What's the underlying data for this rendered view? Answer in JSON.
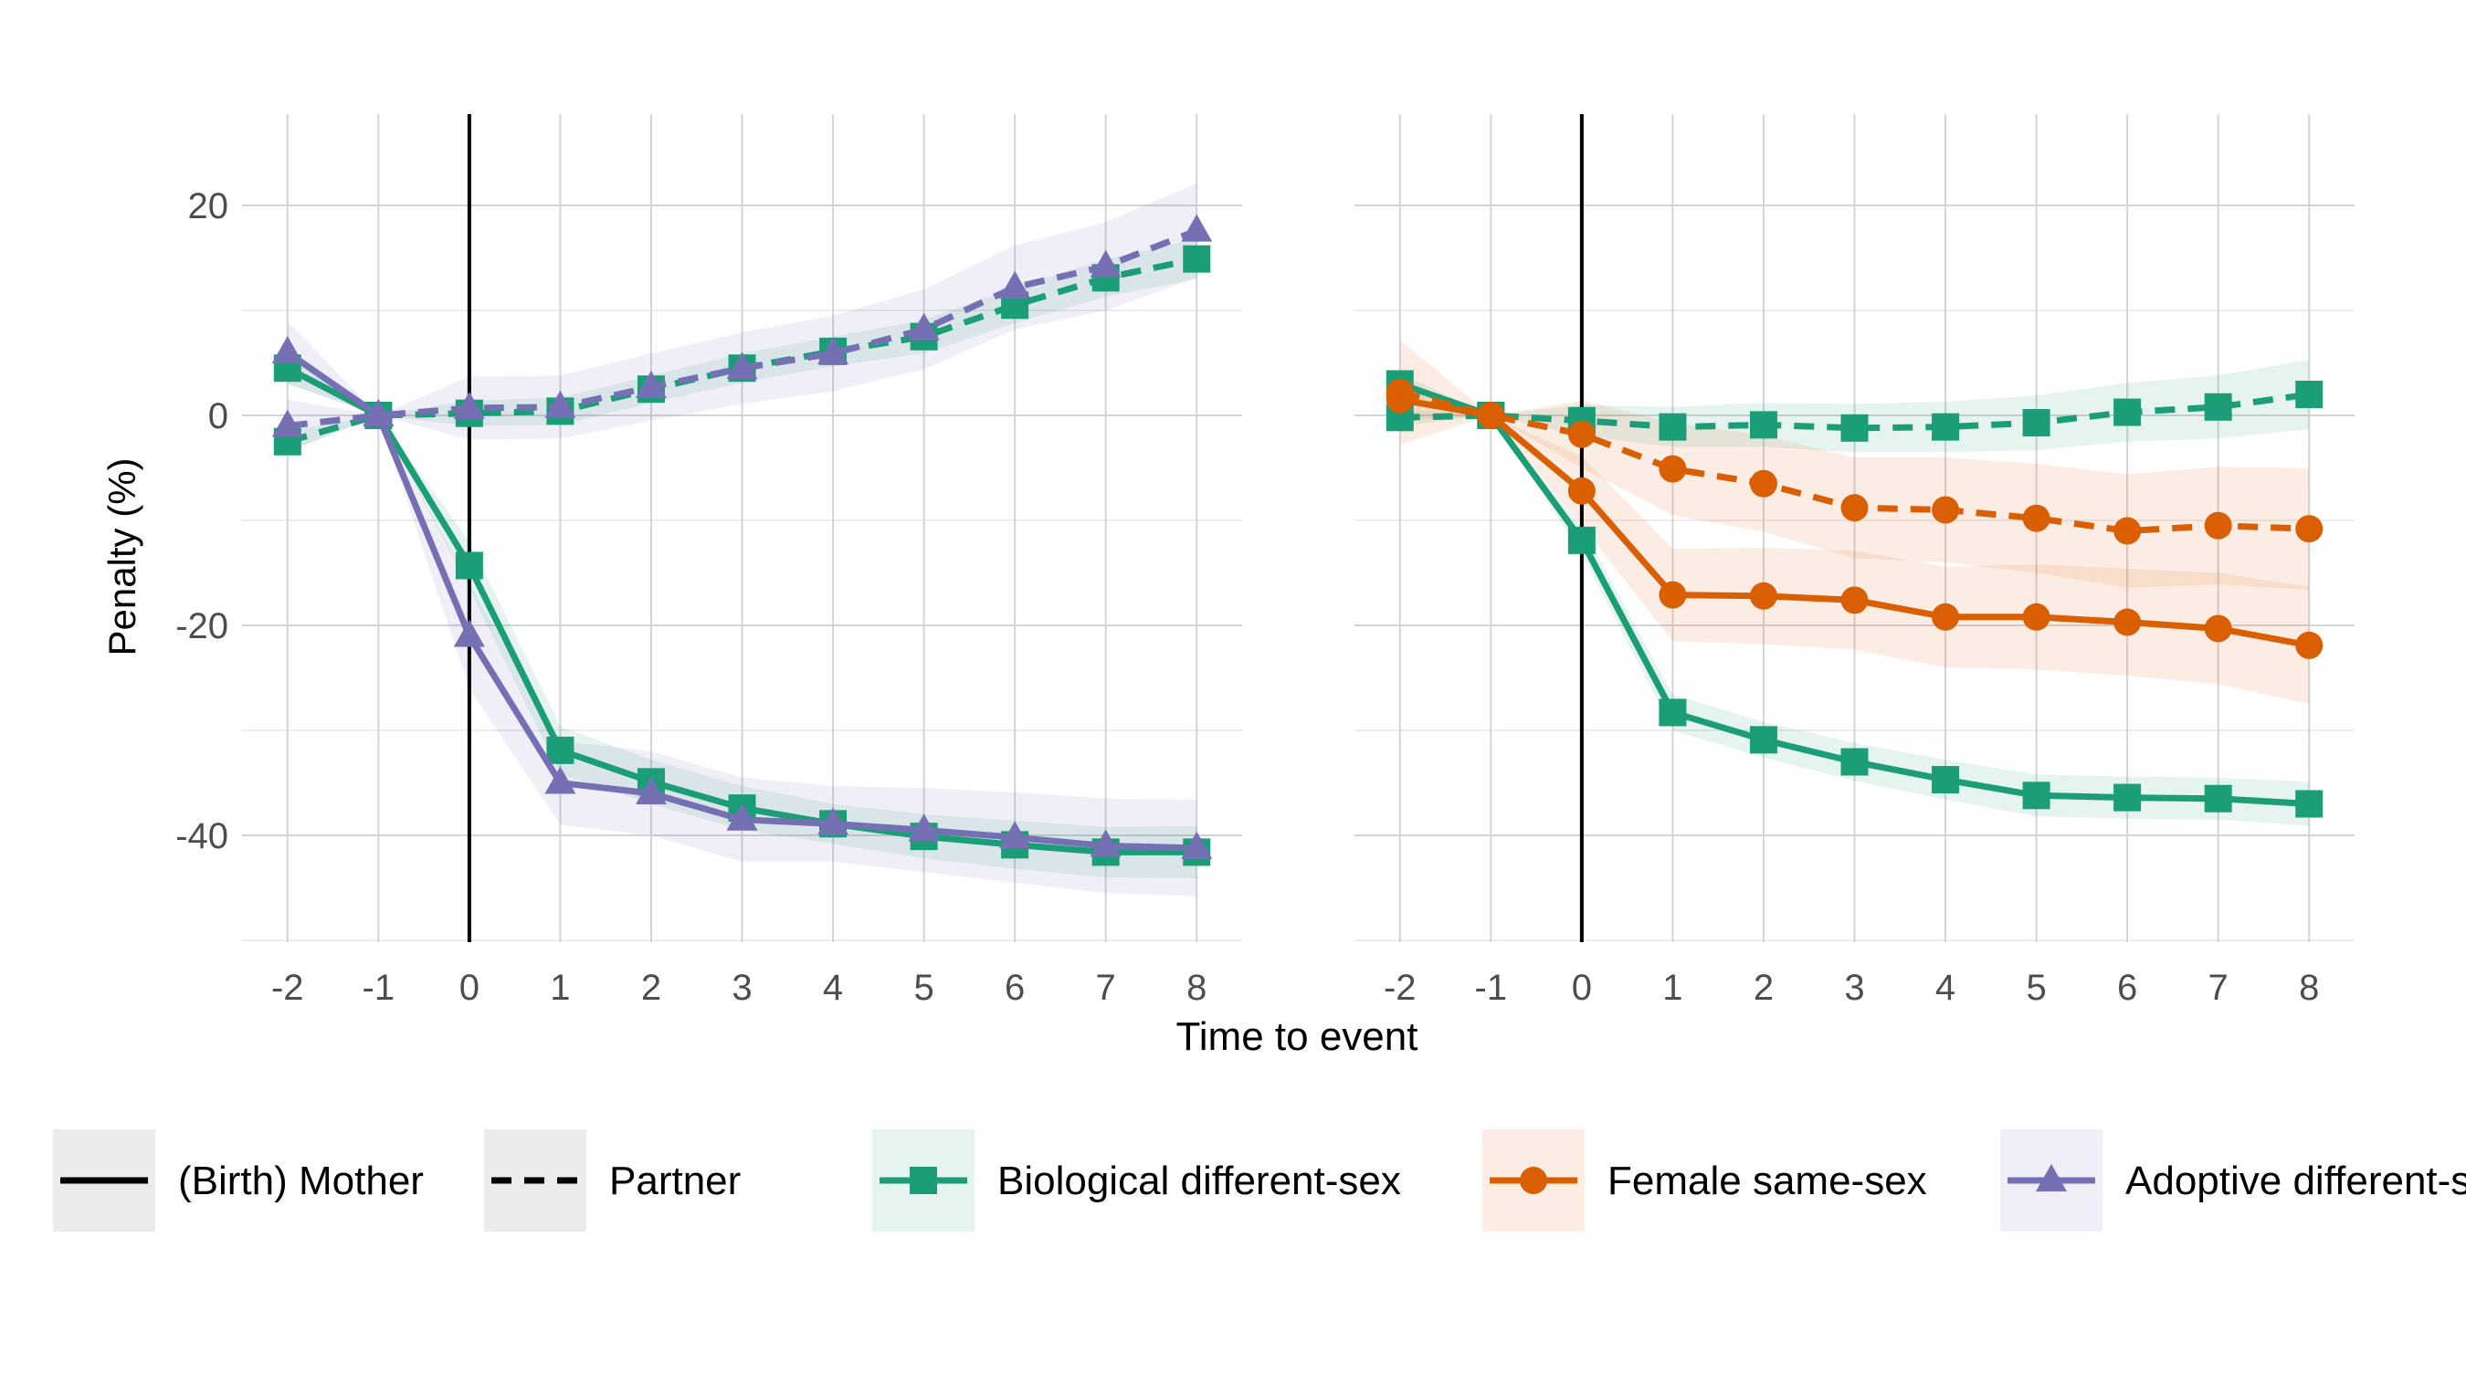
{
  "chart_data": {
    "type": "line",
    "xlabel": "Time to event",
    "ylabel": "Penalty (%)",
    "x": [
      -2,
      -1,
      0,
      1,
      2,
      3,
      4,
      5,
      6,
      7,
      8
    ],
    "xticks": [
      "-2",
      "-1",
      "0",
      "1",
      "2",
      "3",
      "4",
      "5",
      "6",
      "7",
      "8"
    ],
    "yticks": [
      "20",
      "0",
      "-20",
      "-40"
    ],
    "ylim": [
      -50,
      28
    ],
    "xlim": [
      -2.5,
      8.5
    ],
    "event_line_x": 0,
    "grid": true,
    "legend_position": "bottom",
    "legend": {
      "linetypes": [
        {
          "label": "(Birth) Mother",
          "dash": "solid"
        },
        {
          "label": "Partner",
          "dash": "dashed"
        }
      ],
      "groups": [
        {
          "label": "Biological different-sex",
          "color": "#1b9e77",
          "marker": "square"
        },
        {
          "label": "Female same-sex",
          "color": "#d95f02",
          "marker": "circle"
        },
        {
          "label": "Adoptive different-sex",
          "color": "#7570b3",
          "marker": "triangle"
        }
      ]
    },
    "panels": [
      {
        "series": [
          {
            "group": "Biological different-sex",
            "role": "(Birth) Mother",
            "color": "#1b9e77",
            "marker": "square",
            "dash": "solid",
            "values": [
              4.5,
              0,
              -14.3,
              -31.9,
              -34.9,
              -37.4,
              -38.9,
              -40.1,
              -40.9,
              -41.6,
              -41.6
            ],
            "ci": [
              [
                3,
                6
              ],
              [
                0,
                0
              ],
              [
                -16.5,
                -12
              ],
              [
                -34.2,
                -29.6
              ],
              [
                -37,
                -32.8
              ],
              [
                -39.5,
                -35.3
              ],
              [
                -40.8,
                -37
              ],
              [
                -42.2,
                -38
              ],
              [
                -43.2,
                -38.6
              ],
              [
                -44,
                -39.2
              ],
              [
                -44.1,
                -39.1
              ]
            ]
          },
          {
            "group": "Biological different-sex",
            "role": "Partner",
            "color": "#1b9e77",
            "marker": "square",
            "dash": "dashed",
            "values": [
              -2.5,
              0,
              0.2,
              0.4,
              2.5,
              4.5,
              6.1,
              7.5,
              10.5,
              13.1,
              14.9
            ],
            "ci": [
              [
                -3.5,
                -1.5
              ],
              [
                0,
                0
              ],
              [
                -1,
                1.4
              ],
              [
                -0.9,
                1.7
              ],
              [
                1.2,
                3.8
              ],
              [
                3.1,
                5.9
              ],
              [
                4.7,
                7.5
              ],
              [
                5.9,
                9.1
              ],
              [
                8.8,
                12.2
              ],
              [
                11.3,
                14.9
              ],
              [
                13,
                16.8
              ]
            ]
          },
          {
            "group": "Adoptive different-sex",
            "role": "(Birth) Mother",
            "color": "#7570b3",
            "marker": "triangle",
            "dash": "solid",
            "values": [
              6,
              0,
              -21,
              -35,
              -36,
              -38.5,
              -38.9,
              -39.5,
              -40.2,
              -41,
              -41.2
            ],
            "ci": [
              [
                3,
                9
              ],
              [
                0,
                0
              ],
              [
                -26,
                -16
              ],
              [
                -39,
                -31
              ],
              [
                -40,
                -32
              ],
              [
                -42.5,
                -34.5
              ],
              [
                -42.5,
                -35.3
              ],
              [
                -43.5,
                -35.5
              ],
              [
                -44.5,
                -35.9
              ],
              [
                -45.5,
                -36.5
              ],
              [
                -45.8,
                -36.6
              ]
            ]
          },
          {
            "group": "Adoptive different-sex",
            "role": "Partner",
            "color": "#7570b3",
            "marker": "triangle",
            "dash": "dashed",
            "values": [
              -1,
              0,
              0.7,
              0.8,
              2.7,
              4.5,
              5.9,
              8.2,
              12.2,
              14.2,
              17.6
            ],
            "ci": [
              [
                -3.5,
                1.5
              ],
              [
                0,
                0
              ],
              [
                -2.3,
                3.7
              ],
              [
                -2.2,
                3.8
              ],
              [
                -0.5,
                5.9
              ],
              [
                1.1,
                7.9
              ],
              [
                2.3,
                9.5
              ],
              [
                4.4,
                12
              ],
              [
                8.2,
                16.2
              ],
              [
                10,
                18.4
              ],
              [
                13.1,
                22.1
              ]
            ]
          }
        ]
      },
      {
        "series": [
          {
            "group": "Biological different-sex",
            "role": "(Birth) Mother",
            "color": "#1b9e77",
            "marker": "square",
            "dash": "solid",
            "values": [
              3,
              0,
              -11.9,
              -28.3,
              -30.9,
              -33,
              -34.7,
              -36.2,
              -36.4,
              -36.5,
              -37
            ],
            "ci": [
              [
                2,
                4
              ],
              [
                0,
                0
              ],
              [
                -13.2,
                -10.6
              ],
              [
                -30,
                -26.6
              ],
              [
                -32.6,
                -29.2
              ],
              [
                -34.8,
                -31.2
              ],
              [
                -36.6,
                -32.8
              ],
              [
                -38.2,
                -34.2
              ],
              [
                -38.4,
                -34.4
              ],
              [
                -38.5,
                -34.5
              ],
              [
                -39.1,
                -34.9
              ]
            ]
          },
          {
            "group": "Biological different-sex",
            "role": "Partner",
            "color": "#1b9e77",
            "marker": "square",
            "dash": "dashed",
            "values": [
              -0.2,
              0,
              -0.5,
              -1.1,
              -0.9,
              -1.2,
              -1.1,
              -0.7,
              0.3,
              0.8,
              2
            ],
            "ci": [
              [
                -1,
                0.6
              ],
              [
                0,
                0
              ],
              [
                -2,
                1
              ],
              [
                -3,
                0.8
              ],
              [
                -3,
                1.2
              ],
              [
                -3.5,
                1.1
              ],
              [
                -3.5,
                1.3
              ],
              [
                -3.3,
                1.9
              ],
              [
                -2.5,
                3.1
              ],
              [
                -2.2,
                3.8
              ],
              [
                -1.3,
                5.3
              ]
            ]
          },
          {
            "group": "Female same-sex",
            "role": "(Birth) Mother",
            "color": "#d95f02",
            "marker": "circle",
            "dash": "solid",
            "values": [
              1.5,
              0,
              -7.2,
              -17.1,
              -17.2,
              -17.6,
              -19.2,
              -19.2,
              -19.7,
              -20.3,
              -21.9
            ],
            "ci": [
              [
                -0.5,
                3.5
              ],
              [
                0,
                0
              ],
              [
                -10.5,
                -3.9
              ],
              [
                -21.5,
                -12.7
              ],
              [
                -21.8,
                -12.6
              ],
              [
                -22.3,
                -12.9
              ],
              [
                -24,
                -14.4
              ],
              [
                -24.2,
                -14.2
              ],
              [
                -24.8,
                -14.6
              ],
              [
                -25.6,
                -15
              ],
              [
                -27.5,
                -16.3
              ]
            ]
          },
          {
            "group": "Female same-sex",
            "role": "Partner",
            "color": "#d95f02",
            "marker": "circle",
            "dash": "dashed",
            "values": [
              2.2,
              0,
              -1.8,
              -5.1,
              -6.5,
              -8.8,
              -9,
              -9.8,
              -11,
              -10.5,
              -10.8
            ],
            "ci": [
              [
                -2.8,
                7.2
              ],
              [
                0,
                0
              ],
              [
                -5,
                1.4
              ],
              [
                -9.5,
                -0.7
              ],
              [
                -11.1,
                -1.9
              ],
              [
                -13.6,
                -4
              ],
              [
                -14,
                -4
              ],
              [
                -15,
                -4.6
              ],
              [
                -16.4,
                -5.6
              ],
              [
                -16.1,
                -4.9
              ],
              [
                -16.6,
                -5
              ]
            ]
          }
        ]
      }
    ]
  }
}
